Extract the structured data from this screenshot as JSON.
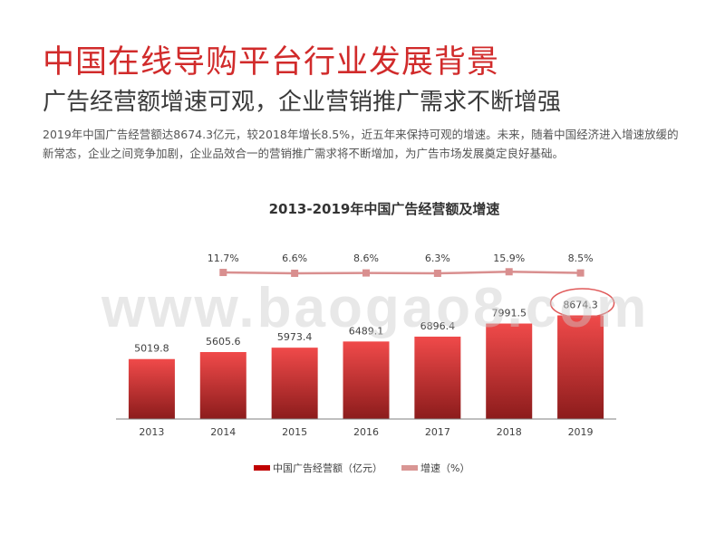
{
  "header": {
    "title": "中国在线导购平台行业发展背景",
    "subtitle": "广告经营额增速可观，企业营销推广需求不断增强",
    "body": "2019年中国广告经营额达8674.3亿元，较2018年增长8.5%，近五年来保持可观的增速。未来，随着中国经济进入增速放缓的新常态，企业之间竞争加剧，企业品效合一的营销推广需求将不断增加，为广告市场发展奠定良好基础。"
  },
  "watermark": "www.baogao8.com",
  "colors": {
    "title": "#d12b2b",
    "bar_top": "#f04a4a",
    "bar_bottom": "#8c1c1c",
    "line": "#d98f8f",
    "legend_bar": "#c00000",
    "legend_line": "#d99694",
    "highlight_ellipse": "#e05a5a"
  },
  "chart_data": {
    "type": "bar",
    "title": "2013-2019年中国广告经营额及增速",
    "categories": [
      "2013",
      "2014",
      "2015",
      "2016",
      "2017",
      "2018",
      "2019"
    ],
    "series": [
      {
        "name": "中国广告经营额（亿元）",
        "type": "bar",
        "values": [
          5019.8,
          5605.6,
          5973.4,
          6489.1,
          6896.4,
          7991.5,
          8674.3
        ],
        "labels": [
          "5019.8",
          "5605.6",
          "5973.4",
          "6489.1",
          "6896.4",
          "7991.5",
          "8674.3"
        ]
      },
      {
        "name": "增速（%）",
        "type": "line",
        "values": [
          null,
          11.7,
          6.6,
          8.6,
          6.3,
          15.9,
          8.5
        ],
        "labels": [
          "",
          "11.7%",
          "6.6%",
          "8.6%",
          "6.3%",
          "15.9%",
          "8.5%"
        ]
      }
    ],
    "legend_position": "bottom",
    "grid": false
  }
}
